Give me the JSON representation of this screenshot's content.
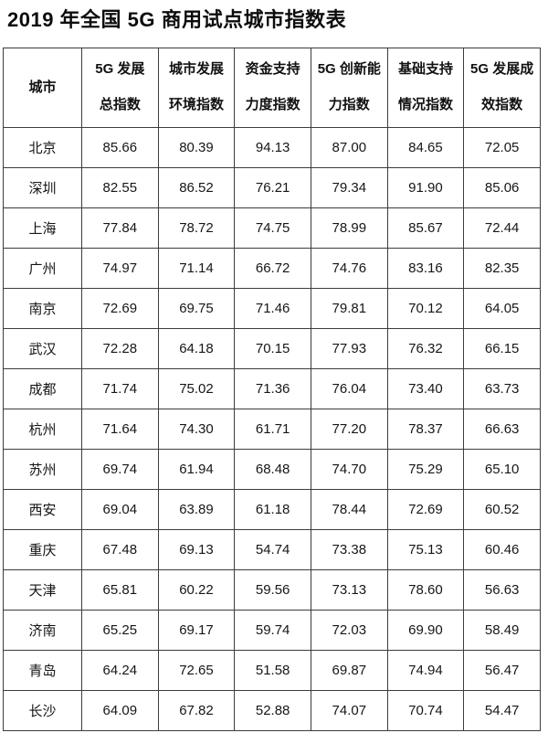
{
  "page": {
    "title": "2019 年全国 5G 商用试点城市指数表"
  },
  "table": {
    "columns": [
      {
        "id": "city",
        "line1": "城市",
        "line2": ""
      },
      {
        "id": "overall",
        "line1": "5G 发展",
        "line2": "总指数"
      },
      {
        "id": "environment",
        "line1": "城市发展",
        "line2": "环境指数"
      },
      {
        "id": "funding",
        "line1": "资金支持",
        "line2": "力度指数"
      },
      {
        "id": "innovation",
        "line1": "5G 创新能",
        "line2": "力指数"
      },
      {
        "id": "infrastructure",
        "line1": "基础支持",
        "line2": "情况指数"
      },
      {
        "id": "effectiveness",
        "line1": "5G 发展成",
        "line2": "效指数"
      }
    ],
    "rows": [
      {
        "city": "北京",
        "values": [
          "85.66",
          "80.39",
          "94.13",
          "87.00",
          "84.65",
          "72.05"
        ]
      },
      {
        "city": "深圳",
        "values": [
          "82.55",
          "86.52",
          "76.21",
          "79.34",
          "91.90",
          "85.06"
        ]
      },
      {
        "city": "上海",
        "values": [
          "77.84",
          "78.72",
          "74.75",
          "78.99",
          "85.67",
          "72.44"
        ]
      },
      {
        "city": "广州",
        "values": [
          "74.97",
          "71.14",
          "66.72",
          "74.76",
          "83.16",
          "82.35"
        ]
      },
      {
        "city": "南京",
        "values": [
          "72.69",
          "69.75",
          "71.46",
          "79.81",
          "70.12",
          "64.05"
        ]
      },
      {
        "city": "武汉",
        "values": [
          "72.28",
          "64.18",
          "70.15",
          "77.93",
          "76.32",
          "66.15"
        ]
      },
      {
        "city": "成都",
        "values": [
          "71.74",
          "75.02",
          "71.36",
          "76.04",
          "73.40",
          "63.73"
        ]
      },
      {
        "city": "杭州",
        "values": [
          "71.64",
          "74.30",
          "61.71",
          "77.20",
          "78.37",
          "66.63"
        ]
      },
      {
        "city": "苏州",
        "values": [
          "69.74",
          "61.94",
          "68.48",
          "74.70",
          "75.29",
          "65.10"
        ]
      },
      {
        "city": "西安",
        "values": [
          "69.04",
          "63.89",
          "61.18",
          "78.44",
          "72.69",
          "60.52"
        ]
      },
      {
        "city": "重庆",
        "values": [
          "67.48",
          "69.13",
          "54.74",
          "73.38",
          "75.13",
          "60.46"
        ]
      },
      {
        "city": "天津",
        "values": [
          "65.81",
          "60.22",
          "59.56",
          "73.13",
          "78.60",
          "56.63"
        ]
      },
      {
        "city": "济南",
        "values": [
          "65.25",
          "69.17",
          "59.74",
          "72.03",
          "69.90",
          "58.49"
        ]
      },
      {
        "city": "青岛",
        "values": [
          "64.24",
          "72.65",
          "51.58",
          "69.87",
          "74.94",
          "56.47"
        ]
      },
      {
        "city": "长沙",
        "values": [
          "64.09",
          "67.82",
          "52.88",
          "74.07",
          "70.74",
          "54.47"
        ]
      }
    ]
  }
}
